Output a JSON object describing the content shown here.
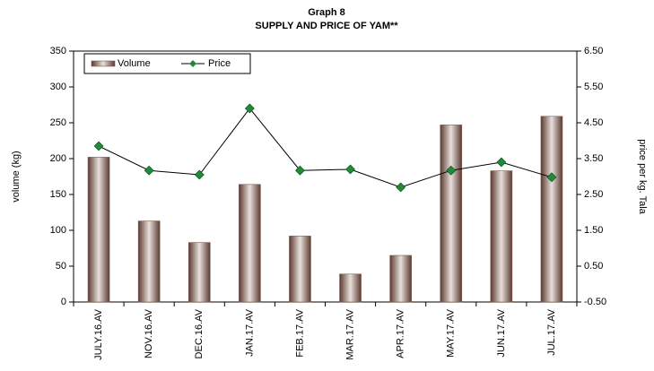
{
  "chart_data": {
    "type": "bar",
    "title": "Graph 8",
    "subtitle": "SUPPLY AND PRICE OF YAM**",
    "y_label": "volume (kg)",
    "y2_label": "price per kg. Tala",
    "categories": [
      "JULY.16.AV",
      "NOV.16.AV",
      "DEC.16.AV",
      "JAN.17.AV",
      "FEB.17.AV",
      "MAR.17.AV",
      "APR.17.AV",
      "MAY.17.AV",
      "JUN.17.AV",
      "JUL.17.AV"
    ],
    "series": [
      {
        "name": "Volume",
        "color": "#7d5a4f",
        "values": [
          202,
          113,
          83,
          164,
          92,
          39,
          65,
          247,
          183,
          259
        ]
      },
      {
        "name": "Price",
        "type": "line",
        "axis": "y2",
        "color": "#000000",
        "marker_color": "#1f8a3a",
        "values": [
          3.85,
          3.17,
          3.05,
          4.9,
          3.17,
          3.2,
          2.7,
          3.17,
          3.4,
          2.98
        ]
      }
    ],
    "ylim": [
      0,
      350
    ],
    "yticks": [
      0,
      50,
      100,
      150,
      200,
      250,
      300,
      350
    ],
    "y2lim": [
      -0.5,
      6.5
    ],
    "y2ticks": [
      {
        "value": -0.5,
        "label": "-0.50"
      },
      {
        "value": 0.5,
        "label": "0.50"
      },
      {
        "value": 1.5,
        "label": "1.50"
      },
      {
        "value": 2.5,
        "label": "2.50"
      },
      {
        "value": 3.5,
        "label": "3.50"
      },
      {
        "value": 4.5,
        "label": "4.50"
      },
      {
        "value": 5.5,
        "label": "5.50"
      },
      {
        "value": 6.5,
        "label": "6.50"
      }
    ],
    "legend": "top-left",
    "grid": false
  }
}
